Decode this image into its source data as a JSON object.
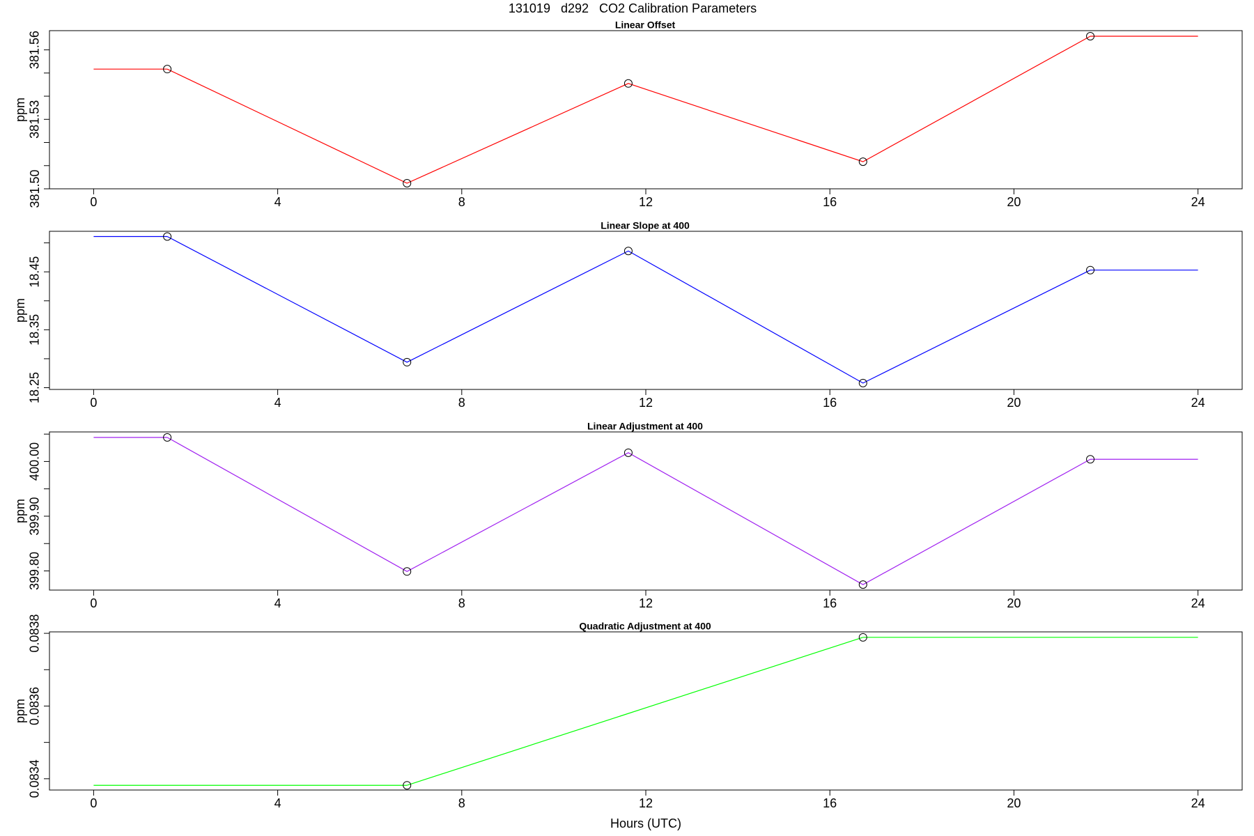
{
  "title": "131019   d292   CO2 Calibration Parameters",
  "chart_data": [
    {
      "type": "line",
      "title": "Linear Offset",
      "ylabel": "ppm",
      "x": [
        1.6,
        6.81,
        11.62,
        16.72,
        21.66
      ],
      "series": [
        {
          "color": "#ff0000",
          "values": [
            381.5517,
            381.5024,
            381.5455,
            381.5117,
            381.5659
          ]
        }
      ],
      "xlim": [
        -0.96,
        24.96
      ],
      "xticks": [
        0,
        4,
        8,
        12,
        16,
        20,
        24
      ],
      "ylim": [
        381.5,
        381.5683
      ],
      "yticks": [
        {
          "value": 381.5,
          "label": "381.50"
        },
        381.53,
        381.56
      ],
      "yminor": [
        381.51,
        381.52,
        381.54,
        381.55
      ]
    },
    {
      "type": "line",
      "title": "Linear Slope at 400",
      "ylabel": "ppm",
      "x": [
        1.6,
        6.81,
        11.62,
        16.72,
        21.66
      ],
      "series": [
        {
          "color": "#0000ff",
          "values": [
            18.511,
            18.294,
            18.486,
            18.258,
            18.453
          ]
        }
      ],
      "xlim": [
        -0.96,
        24.96
      ],
      "xticks": [
        0,
        4,
        8,
        12,
        16,
        20,
        24
      ],
      "ylim": [
        18.247,
        18.52
      ],
      "yticks": [
        18.25,
        18.35,
        18.45
      ],
      "yminor": [
        18.3,
        18.4,
        18.5
      ]
    },
    {
      "type": "line",
      "title": "Linear Adjustment at 400",
      "ylabel": "ppm",
      "x": [
        1.6,
        6.81,
        11.62,
        16.72,
        21.66
      ],
      "series": [
        {
          "color": "#a020f0",
          "values": [
            400.044,
            399.799,
            400.016,
            399.775,
            400.004
          ]
        }
      ],
      "xlim": [
        -0.96,
        24.96
      ],
      "xticks": [
        0,
        4,
        8,
        12,
        16,
        20,
        24
      ],
      "ylim": [
        399.765,
        400.054
      ],
      "yticks": [
        {
          "value": 399.8,
          "label": "399.80"
        },
        {
          "value": 399.9,
          "label": "399.90"
        },
        {
          "value": 400,
          "label": "400.00"
        }
      ],
      "yminor": [
        399.85,
        399.95,
        400.05
      ]
    },
    {
      "type": "line",
      "title": "Quadratic Adjustment at 400",
      "ylabel": "ppm",
      "xlabel": "Hours (UTC)",
      "x": [
        6.81,
        16.72
      ],
      "series": [
        {
          "color": "#00ff00",
          "values": [
            0.083382,
            0.083789
          ]
        }
      ],
      "xlim": [
        -0.96,
        24.96
      ],
      "xticks": [
        0,
        4,
        8,
        12,
        16,
        20,
        24
      ],
      "ylim": [
        0.083369,
        0.083804
      ],
      "yticks": [
        0.0834,
        0.0836,
        0.0838
      ],
      "yminor": [
        0.0835,
        0.0837
      ]
    }
  ]
}
